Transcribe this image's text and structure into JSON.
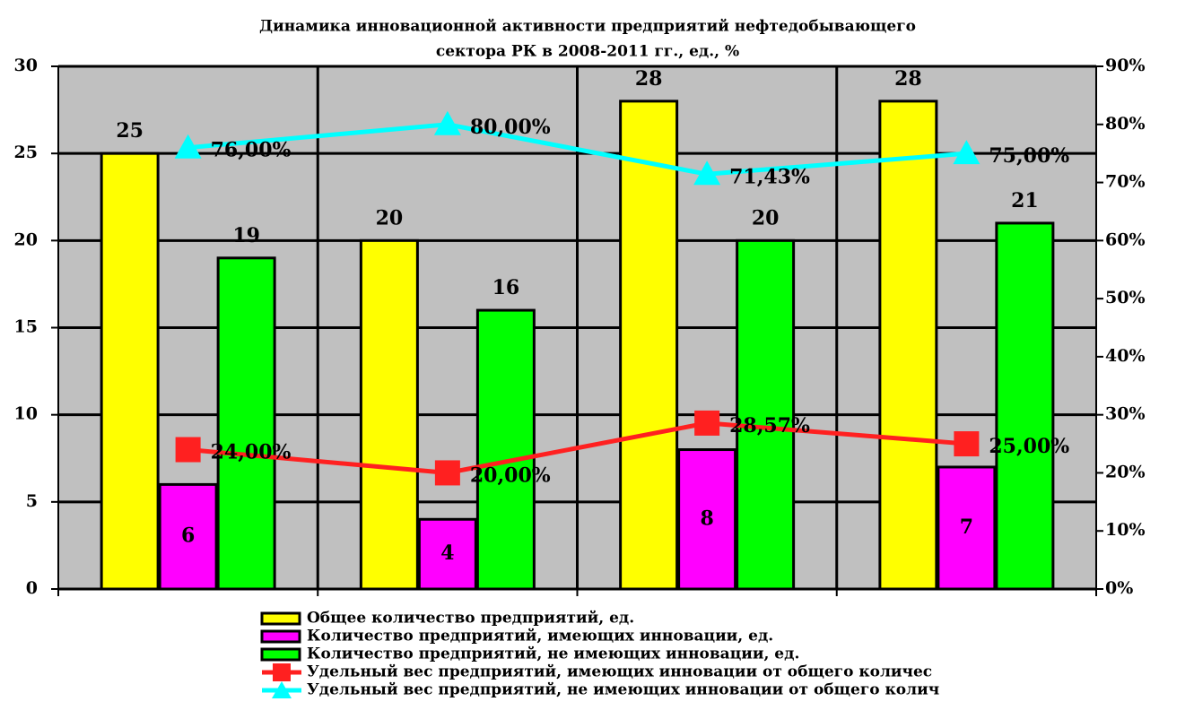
{
  "chart_data": {
    "type": "bar",
    "title": [
      "Динамика инновационной активности предприятий нефтедобывающего",
      "сектора РК  в 2008-2011 гг., ед., %"
    ],
    "categories": [
      null,
      null,
      null,
      null
    ],
    "ylim": [
      0,
      30
    ],
    "yticks": [
      0,
      5,
      10,
      15,
      20,
      25,
      30
    ],
    "y2lim": [
      0,
      90
    ],
    "y2ticks": [
      {
        "value": 0,
        "label": "0%"
      },
      {
        "value": 10,
        "label": "10%"
      },
      {
        "value": 20,
        "label": "20%"
      },
      {
        "value": 30,
        "label": "30%"
      },
      {
        "value": 40,
        "label": "40%"
      },
      {
        "value": 50,
        "label": "50%"
      },
      {
        "value": 60,
        "label": "60%"
      },
      {
        "value": 70,
        "label": "70%"
      },
      {
        "value": 80,
        "label": "80%"
      },
      {
        "value": 90,
        "label": "90%"
      }
    ],
    "grid": true,
    "legend": "bottom",
    "series": [
      {
        "name": "Общее количество предприятий, ед.",
        "type": "bar",
        "color": "#ffff00",
        "values": [
          25,
          20,
          28,
          28
        ]
      },
      {
        "name": "Количество предприятий, имеющих инновации, ед.",
        "type": "bar",
        "color": "#ff00ff",
        "values": [
          6,
          4,
          8,
          7
        ]
      },
      {
        "name": "Количество предприятий, не имеющих инновации, ед.",
        "type": "bar",
        "color": "#00ff00",
        "values": [
          19,
          16,
          20,
          21
        ]
      },
      {
        "name": "Удельный вес предприятий, имеющих инновации от общего количес",
        "type": "line",
        "axis": "y2",
        "color": "#ff2020",
        "marker": "square",
        "values": [
          24,
          20,
          28.57,
          25
        ],
        "value_labels": [
          "24,00%",
          "20,00%",
          "28,57%",
          "25,00%"
        ]
      },
      {
        "name": "Удельный вес предприятий, не имеющих инновации от общего колич",
        "type": "line",
        "axis": "y2",
        "color": "#00ffff",
        "marker": "triangle",
        "values": [
          76,
          80,
          71.43,
          75
        ],
        "value_labels": [
          "76,00%",
          "80,00%",
          "71,43%",
          "75,00%"
        ]
      }
    ]
  }
}
